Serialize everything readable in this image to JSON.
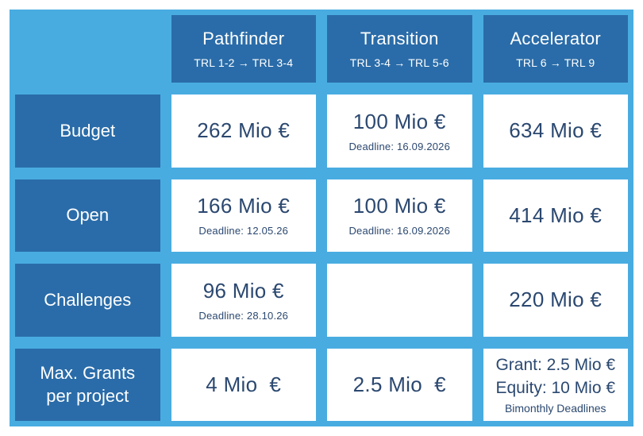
{
  "palette": {
    "page_bg": "#ffffff",
    "panel_bg": "#49ACE1",
    "dark_cell_bg": "#2A6CA9",
    "data_cell_bg": "#ffffff",
    "value_text": "#2B4870",
    "header_text": "#ffffff"
  },
  "columns": [
    {
      "title": "Pathfinder",
      "subtitle": "TRL 1-2 → TRL 3-4"
    },
    {
      "title": "Transition",
      "subtitle": "TRL 3-4 → TRL 5-6"
    },
    {
      "title": "Accelerator",
      "subtitle": "TRL 6 → TRL 9"
    }
  ],
  "rows": [
    {
      "label": "Budget",
      "cells": [
        {
          "value": "262 Mio €"
        },
        {
          "value": "100 Mio €",
          "deadline": "Deadline: 16.09.2026"
        },
        {
          "value": "634 Mio €"
        }
      ]
    },
    {
      "label": "Open",
      "cells": [
        {
          "value": "166 Mio €",
          "deadline": "Deadline: 12.05.26"
        },
        {
          "value": "100 Mio €",
          "deadline": "Deadline: 16.09.2026"
        },
        {
          "value": "414 Mio €"
        }
      ]
    },
    {
      "label": "Challenges",
      "cells": [
        {
          "value": "96 Mio €",
          "deadline": "Deadline: 28.10.26"
        },
        {
          "value": ""
        },
        {
          "value": "220 Mio €"
        }
      ]
    },
    {
      "label": "Max. Grants per project",
      "cells": [
        {
          "value": "4 Mio  €"
        },
        {
          "value": "2.5 Mio  €"
        },
        {
          "line1": "Grant: 2.5 Mio €",
          "line2": "Equity: 10 Mio €",
          "note": "Bimonthly Deadlines"
        }
      ]
    }
  ],
  "chart_data": {
    "type": "table",
    "title": "EIC funding overview: Budget per programme (Mio €)",
    "columns": [
      "",
      "Pathfinder (TRL 1-2 → TRL 3-4)",
      "Transition (TRL 3-4 → TRL 5-6)",
      "Accelerator (TRL 6 → TRL 9)"
    ],
    "rows": [
      [
        "Budget",
        "262 Mio €",
        "100 Mio € (Deadline: 16.09.2026)",
        "634 Mio €"
      ],
      [
        "Open",
        "166 Mio € (Deadline: 12.05.26)",
        "100 Mio € (Deadline: 16.09.2026)",
        "414 Mio €"
      ],
      [
        "Challenges",
        "96 Mio € (Deadline: 28.10.26)",
        "",
        "220 Mio €"
      ],
      [
        "Max. Grants per project",
        "4 Mio €",
        "2.5 Mio €",
        "Grant: 2.5 Mio €; Equity: 10 Mio €; Bimonthly Deadlines"
      ]
    ]
  }
}
